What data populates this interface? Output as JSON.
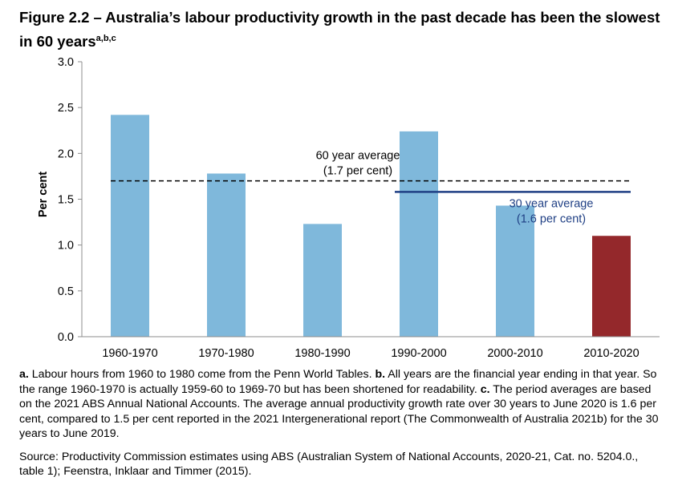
{
  "title": "Figure 2.2 – Australia’s labour productivity growth in the past decade has been the slowest in 60 years",
  "title_superscript": "a,b,c",
  "chart_data": {
    "type": "bar",
    "ylabel": "Per cent",
    "xlabel": "",
    "ylim": [
      0,
      3.0
    ],
    "yticks": [
      "0.0",
      "0.5",
      "1.0",
      "1.5",
      "2.0",
      "2.5",
      "3.0"
    ],
    "grid": false,
    "categories": [
      "1960-1970",
      "1970-1980",
      "1980-1990",
      "1990-2000",
      "2000-2010",
      "2010-2020"
    ],
    "values": [
      2.42,
      1.78,
      1.23,
      2.24,
      1.43,
      1.1
    ],
    "bar_colors": [
      "#7fb8db",
      "#7fb8db",
      "#7fb8db",
      "#7fb8db",
      "#7fb8db",
      "#94282b"
    ],
    "reference_lines": [
      {
        "value": 1.7,
        "style": "dashed",
        "color": "#000000",
        "from_category": 0,
        "to_category": 5,
        "label_line1": "60 year average",
        "label_line2": "(1.7 per cent)",
        "label_color": "#000000"
      },
      {
        "value": 1.58,
        "style": "solid",
        "color": "#1f3f84",
        "from_category": 3,
        "to_category": 5,
        "label_line1": "30 year average",
        "label_line2": "(1.6 per cent)",
        "label_color": "#1f3f84"
      }
    ]
  },
  "notes": {
    "a_letter": "a.",
    "a_text": " Labour hours from 1960 to 1980 come from the Penn World Tables. ",
    "b_letter": "b.",
    "b_text": " All years are the financial year ending in that year. So the range 1960-1970 is actually 1959-60 to 1969-70 but has been shortened for readability. ",
    "c_letter": "c.",
    "c_text": " The period averages are based on the 2021 ABS Annual National Accounts. The average annual productivity growth rate over 30 years to June 2020 is 1.6 per cent, compared to 1.5 per cent reported in the 2021 Intergenerational report (The Commonwealth of Australia 2021b) for the 30 years to June 2019.",
    "source": "Source: Productivity Commission estimates using ABS (Australian System of National Accounts, 2020-21, Cat. no. 5204.0., table 1); Feenstra, Inklaar and Timmer (2015)."
  }
}
